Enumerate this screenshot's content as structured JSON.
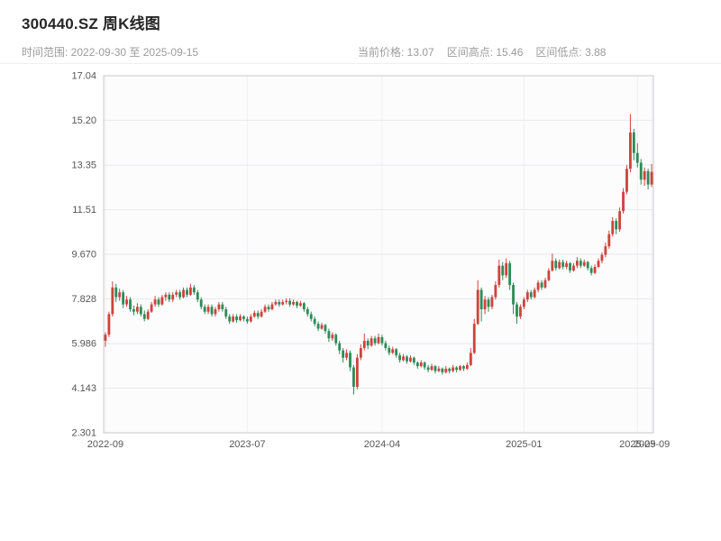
{
  "header": {
    "title": "300440.SZ 周K线图",
    "time_range": "时间范围: 2022-09-30 至 2025-09-15",
    "stats": {
      "current_price": "当前价格: 13.07",
      "range_high": "区间高点: 15.46",
      "range_low": "区间低点: 3.88"
    }
  },
  "chart_data": {
    "type": "candlestick",
    "symbol": "300440.SZ",
    "interval": "weekly",
    "title": "300440.SZ 周K线图",
    "start_date": "2022-09-30",
    "end_date": "2025-09-15",
    "current_price": 13.07,
    "range_high": 15.46,
    "range_low": 3.88,
    "grid": true,
    "colors": {
      "up": "#cf433d",
      "down": "#2e8b57",
      "grid": "#e9e9ee",
      "grid_vertical": "#f0f0f3",
      "plot_bg": "#fcfcfd",
      "plot_border": "#c9c9c9",
      "axis_text": "#555555"
    },
    "y_axis": {
      "min": 2.301,
      "max": 17.04,
      "ticks": [
        {
          "value": 2.301,
          "label": "2.301"
        },
        {
          "value": 4.143,
          "label": "4.143"
        },
        {
          "value": 5.986,
          "label": "5.986"
        },
        {
          "value": 7.828,
          "label": "7.828"
        },
        {
          "value": 9.67,
          "label": "9.670"
        },
        {
          "value": 11.51,
          "label": "11.51"
        },
        {
          "value": 13.35,
          "label": "13.35"
        },
        {
          "value": 15.2,
          "label": "15.20"
        },
        {
          "value": 17.04,
          "label": "17.04"
        }
      ]
    },
    "x_axis": {
      "ticks": [
        {
          "pos": 0,
          "label": "2022-09"
        },
        {
          "pos": 40,
          "label": "2023-07"
        },
        {
          "pos": 78,
          "label": "2024-04"
        },
        {
          "pos": 118,
          "label": "2025-01"
        },
        {
          "pos": 150,
          "label": "2025-09"
        },
        {
          "pos": 154,
          "label": "2025-09"
        }
      ]
    },
    "candles": [
      [
        6.1,
        6.45,
        5.85,
        6.35
      ],
      [
        6.35,
        7.3,
        6.25,
        7.2
      ],
      [
        7.2,
        8.55,
        7.1,
        8.3
      ],
      [
        8.3,
        8.45,
        7.7,
        7.9
      ],
      [
        7.9,
        8.25,
        7.75,
        8.1
      ],
      [
        8.1,
        8.2,
        7.45,
        7.6
      ],
      [
        7.6,
        7.95,
        7.5,
        7.8
      ],
      [
        7.8,
        7.9,
        7.3,
        7.4
      ],
      [
        7.4,
        7.55,
        7.15,
        7.3
      ],
      [
        7.3,
        7.65,
        7.2,
        7.5
      ],
      [
        7.5,
        7.6,
        7.1,
        7.2
      ],
      [
        7.2,
        7.35,
        6.9,
        7.0
      ],
      [
        7.0,
        7.4,
        6.95,
        7.3
      ],
      [
        7.3,
        7.7,
        7.25,
        7.6
      ],
      [
        7.6,
        7.95,
        7.5,
        7.8
      ],
      [
        7.8,
        7.9,
        7.5,
        7.6
      ],
      [
        7.6,
        8.0,
        7.55,
        7.9
      ],
      [
        7.9,
        8.1,
        7.75,
        8.0
      ],
      [
        8.0,
        8.1,
        7.7,
        7.8
      ],
      [
        7.8,
        8.1,
        7.7,
        8.0
      ],
      [
        8.0,
        8.2,
        7.9,
        8.1
      ],
      [
        8.1,
        8.2,
        7.8,
        7.9
      ],
      [
        7.9,
        8.3,
        7.85,
        8.2
      ],
      [
        8.2,
        8.3,
        7.9,
        8.0
      ],
      [
        8.0,
        8.45,
        7.95,
        8.3
      ],
      [
        8.3,
        8.4,
        8.0,
        8.1
      ],
      [
        8.1,
        8.2,
        7.7,
        7.8
      ],
      [
        7.8,
        7.9,
        7.4,
        7.5
      ],
      [
        7.5,
        7.6,
        7.2,
        7.3
      ],
      [
        7.3,
        7.6,
        7.2,
        7.5
      ],
      [
        7.5,
        7.6,
        7.1,
        7.2
      ],
      [
        7.2,
        7.5,
        7.1,
        7.4
      ],
      [
        7.4,
        7.7,
        7.3,
        7.6
      ],
      [
        7.6,
        7.7,
        7.3,
        7.4
      ],
      [
        7.4,
        7.5,
        7.0,
        7.1
      ],
      [
        7.1,
        7.2,
        6.8,
        6.9
      ],
      [
        6.9,
        7.2,
        6.85,
        7.1
      ],
      [
        7.1,
        7.2,
        6.85,
        6.95
      ],
      [
        6.95,
        7.2,
        6.9,
        7.1
      ],
      [
        7.1,
        7.15,
        6.9,
        7.0
      ],
      [
        7.0,
        7.1,
        6.8,
        6.9
      ],
      [
        6.9,
        7.2,
        6.85,
        7.1
      ],
      [
        7.1,
        7.35,
        7.05,
        7.25
      ],
      [
        7.25,
        7.35,
        7.0,
        7.1
      ],
      [
        7.1,
        7.4,
        7.05,
        7.3
      ],
      [
        7.3,
        7.6,
        7.25,
        7.5
      ],
      [
        7.5,
        7.6,
        7.3,
        7.4
      ],
      [
        7.4,
        7.7,
        7.35,
        7.6
      ],
      [
        7.6,
        7.8,
        7.55,
        7.7
      ],
      [
        7.7,
        7.8,
        7.5,
        7.6
      ],
      [
        7.6,
        7.8,
        7.55,
        7.7
      ],
      [
        7.7,
        7.85,
        7.6,
        7.75
      ],
      [
        7.75,
        7.85,
        7.5,
        7.6
      ],
      [
        7.6,
        7.8,
        7.55,
        7.7
      ],
      [
        7.7,
        7.75,
        7.45,
        7.55
      ],
      [
        7.55,
        7.75,
        7.5,
        7.65
      ],
      [
        7.65,
        7.7,
        7.3,
        7.4
      ],
      [
        7.4,
        7.5,
        7.1,
        7.2
      ],
      [
        7.2,
        7.3,
        6.9,
        7.0
      ],
      [
        7.0,
        7.1,
        6.7,
        6.8
      ],
      [
        6.8,
        6.9,
        6.5,
        6.6
      ],
      [
        6.6,
        6.85,
        6.55,
        6.75
      ],
      [
        6.75,
        6.8,
        6.4,
        6.5
      ],
      [
        6.5,
        6.6,
        6.05,
        6.2
      ],
      [
        6.2,
        6.45,
        6.1,
        6.35
      ],
      [
        6.35,
        6.4,
        5.9,
        6.0
      ],
      [
        6.0,
        6.1,
        5.55,
        5.7
      ],
      [
        5.7,
        5.8,
        5.2,
        5.4
      ],
      [
        5.4,
        5.75,
        5.3,
        5.6
      ],
      [
        5.6,
        5.7,
        4.85,
        5.0
      ],
      [
        5.0,
        5.1,
        3.88,
        4.2
      ],
      [
        4.2,
        5.55,
        4.1,
        5.4
      ],
      [
        5.4,
        5.95,
        5.3,
        5.8
      ],
      [
        5.8,
        6.4,
        5.7,
        6.1
      ],
      [
        6.1,
        6.2,
        5.75,
        5.9
      ],
      [
        5.9,
        6.3,
        5.85,
        6.2
      ],
      [
        6.2,
        6.3,
        5.9,
        6.0
      ],
      [
        6.0,
        6.4,
        5.95,
        6.25
      ],
      [
        6.25,
        6.35,
        5.9,
        6.0
      ],
      [
        6.0,
        6.1,
        5.7,
        5.8
      ],
      [
        5.8,
        5.9,
        5.5,
        5.6
      ],
      [
        5.6,
        5.85,
        5.55,
        5.75
      ],
      [
        5.75,
        5.8,
        5.4,
        5.5
      ],
      [
        5.5,
        5.6,
        5.2,
        5.3
      ],
      [
        5.3,
        5.55,
        5.25,
        5.45
      ],
      [
        5.45,
        5.5,
        5.15,
        5.25
      ],
      [
        5.25,
        5.5,
        5.2,
        5.4
      ],
      [
        5.4,
        5.45,
        5.1,
        5.2
      ],
      [
        5.2,
        5.25,
        4.95,
        5.05
      ],
      [
        5.05,
        5.3,
        5.0,
        5.2
      ],
      [
        5.2,
        5.25,
        4.9,
        5.0
      ],
      [
        5.0,
        5.1,
        4.8,
        4.9
      ],
      [
        4.9,
        5.15,
        4.85,
        5.05
      ],
      [
        5.05,
        5.1,
        4.75,
        4.85
      ],
      [
        4.85,
        5.05,
        4.8,
        4.95
      ],
      [
        4.95,
        5.0,
        4.7,
        4.8
      ],
      [
        4.8,
        5.05,
        4.75,
        4.95
      ],
      [
        4.95,
        5.0,
        4.75,
        4.85
      ],
      [
        4.85,
        5.1,
        4.8,
        5.0
      ],
      [
        5.0,
        5.05,
        4.8,
        4.9
      ],
      [
        4.9,
        5.1,
        4.85,
        5.05
      ],
      [
        5.05,
        5.1,
        4.85,
        4.95
      ],
      [
        4.95,
        5.2,
        4.9,
        5.1
      ],
      [
        5.1,
        5.8,
        5.05,
        5.6
      ],
      [
        5.6,
        7.0,
        5.55,
        6.8
      ],
      [
        6.8,
        8.6,
        6.75,
        8.2
      ],
      [
        8.2,
        8.3,
        6.9,
        7.4
      ],
      [
        7.4,
        7.95,
        7.2,
        7.8
      ],
      [
        7.8,
        7.9,
        7.3,
        7.5
      ],
      [
        7.5,
        8.0,
        7.4,
        7.9
      ],
      [
        7.9,
        8.55,
        7.8,
        8.4
      ],
      [
        8.4,
        9.45,
        8.3,
        9.2
      ],
      [
        9.2,
        9.35,
        8.6,
        8.8
      ],
      [
        8.8,
        9.5,
        8.7,
        9.3
      ],
      [
        9.3,
        9.4,
        8.2,
        8.4
      ],
      [
        8.4,
        8.5,
        7.2,
        7.6
      ],
      [
        7.6,
        7.7,
        6.8,
        7.1
      ],
      [
        7.1,
        7.6,
        7.0,
        7.5
      ],
      [
        7.5,
        7.9,
        7.4,
        7.8
      ],
      [
        7.8,
        8.2,
        7.7,
        8.1
      ],
      [
        8.1,
        8.2,
        7.8,
        7.9
      ],
      [
        7.9,
        8.3,
        7.85,
        8.2
      ],
      [
        8.2,
        8.6,
        8.1,
        8.5
      ],
      [
        8.5,
        8.6,
        8.2,
        8.3
      ],
      [
        8.3,
        8.7,
        8.25,
        8.6
      ],
      [
        8.6,
        9.1,
        8.55,
        9.0
      ],
      [
        9.0,
        9.7,
        8.95,
        9.4
      ],
      [
        9.4,
        9.5,
        9.0,
        9.1
      ],
      [
        9.1,
        9.45,
        9.05,
        9.35
      ],
      [
        9.35,
        9.45,
        9.05,
        9.15
      ],
      [
        9.15,
        9.4,
        9.05,
        9.3
      ],
      [
        9.3,
        9.35,
        8.9,
        9.0
      ],
      [
        9.0,
        9.3,
        8.95,
        9.2
      ],
      [
        9.2,
        9.55,
        9.1,
        9.4
      ],
      [
        9.4,
        9.5,
        9.1,
        9.2
      ],
      [
        9.2,
        9.45,
        9.15,
        9.35
      ],
      [
        9.35,
        9.4,
        9.0,
        9.1
      ],
      [
        9.1,
        9.2,
        8.8,
        8.9
      ],
      [
        8.9,
        9.25,
        8.85,
        9.15
      ],
      [
        9.15,
        9.5,
        9.1,
        9.4
      ],
      [
        9.4,
        9.75,
        9.3,
        9.65
      ],
      [
        9.65,
        10.15,
        9.55,
        10.0
      ],
      [
        10.0,
        10.65,
        9.9,
        10.5
      ],
      [
        10.5,
        11.2,
        10.4,
        11.05
      ],
      [
        11.05,
        11.15,
        10.5,
        10.7
      ],
      [
        10.7,
        11.6,
        10.6,
        11.45
      ],
      [
        11.45,
        12.4,
        11.35,
        12.25
      ],
      [
        12.25,
        13.35,
        12.15,
        13.2
      ],
      [
        13.2,
        15.46,
        13.05,
        14.7
      ],
      [
        14.7,
        14.85,
        13.55,
        13.85
      ],
      [
        13.85,
        14.25,
        13.25,
        13.45
      ],
      [
        13.45,
        13.6,
        12.55,
        12.75
      ],
      [
        12.75,
        13.25,
        12.5,
        13.1
      ],
      [
        13.1,
        13.2,
        12.35,
        12.55
      ],
      [
        12.55,
        13.4,
        12.45,
        13.07
      ]
    ]
  }
}
